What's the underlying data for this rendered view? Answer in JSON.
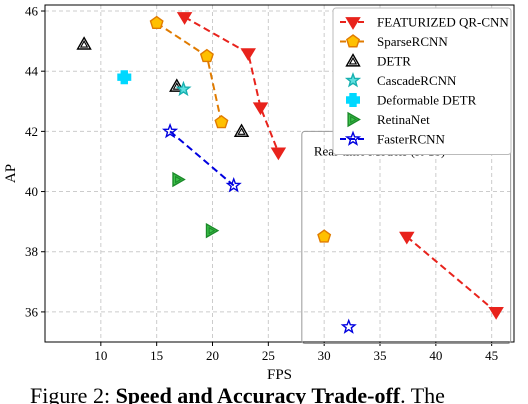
{
  "chart_data": {
    "type": "scatter",
    "xlabel": "FPS",
    "ylabel": "AP",
    "xlim": [
      5,
      47
    ],
    "ylim": [
      35,
      46.2
    ],
    "xticks": [
      10,
      15,
      20,
      25,
      30,
      35,
      40,
      45
    ],
    "yticks": [
      36,
      38,
      40,
      42,
      44,
      46
    ],
    "grid": true,
    "legend_position": "top-right",
    "series": [
      {
        "name": "FEATURIZED QR-CNN",
        "marker": "triangle-down",
        "color": "#e8231c",
        "fill": "#e8231c",
        "line": "dashed",
        "segments": [
          [
            0,
            1,
            2,
            3
          ]
        ],
        "points": [
          [
            17.5,
            45.8
          ],
          [
            23.2,
            44.6
          ],
          [
            24.3,
            42.8
          ],
          [
            25.9,
            41.3
          ]
        ]
      },
      {
        "name": "SparseRCNN",
        "marker": "pentagon",
        "color": "#e07b00",
        "fill": "#ffc000",
        "line": "dashed",
        "segments": [
          [
            0,
            1,
            2
          ]
        ],
        "points": [
          [
            15.0,
            45.6
          ],
          [
            19.5,
            44.5
          ],
          [
            20.8,
            42.3
          ]
        ]
      },
      {
        "name": "DETR",
        "marker": "triangle-up",
        "color": "#000000",
        "fill": "none",
        "line": "none",
        "segments": [],
        "points": [
          [
            8.5,
            44.9
          ],
          [
            16.8,
            43.5
          ],
          [
            22.6,
            42.0
          ]
        ]
      },
      {
        "name": "CascadeRCNN",
        "marker": "star",
        "color": "#17b0b0",
        "fill": "#5fe0e0",
        "line": "none",
        "segments": [],
        "points": [
          [
            17.4,
            43.4
          ]
        ]
      },
      {
        "name": "Deformable DETR",
        "marker": "plus",
        "color": "#00d8ff",
        "fill": "#00d8ff",
        "line": "none",
        "segments": [],
        "points": [
          [
            12.1,
            43.8
          ]
        ]
      },
      {
        "name": "RetinaNet",
        "marker": "triangle-right",
        "color": "#1c8a2a",
        "fill": "#3cc24a",
        "line": "none",
        "segments": [],
        "points": [
          [
            16.9,
            40.4
          ],
          [
            19.9,
            38.7
          ]
        ]
      },
      {
        "name": "FasterRCNN",
        "marker": "star",
        "color": "#0000e0",
        "fill": "none",
        "line": "dashed",
        "segments": [
          [
            0,
            1
          ]
        ],
        "points": [
          [
            16.2,
            42.0
          ],
          [
            21.9,
            40.2
          ]
        ]
      }
    ],
    "realtime_group": {
      "label": "Real-time Models (R-18)",
      "points": [
        {
          "series": "SparseRCNN",
          "x": 30.0,
          "y": 38.5
        },
        {
          "series": "FEATURIZED QR-CNN",
          "x": 37.4,
          "y": 38.5
        },
        {
          "series": "FEATURIZED QR-CNN",
          "x": 45.4,
          "y": 36.0
        },
        {
          "series": "FasterRCNN",
          "x": 32.2,
          "y": 35.5
        }
      ]
    }
  },
  "caption": {
    "prefix": "Figure 2: ",
    "bold": "Speed and Accuracy Trade-off",
    "suffix": ". The"
  }
}
